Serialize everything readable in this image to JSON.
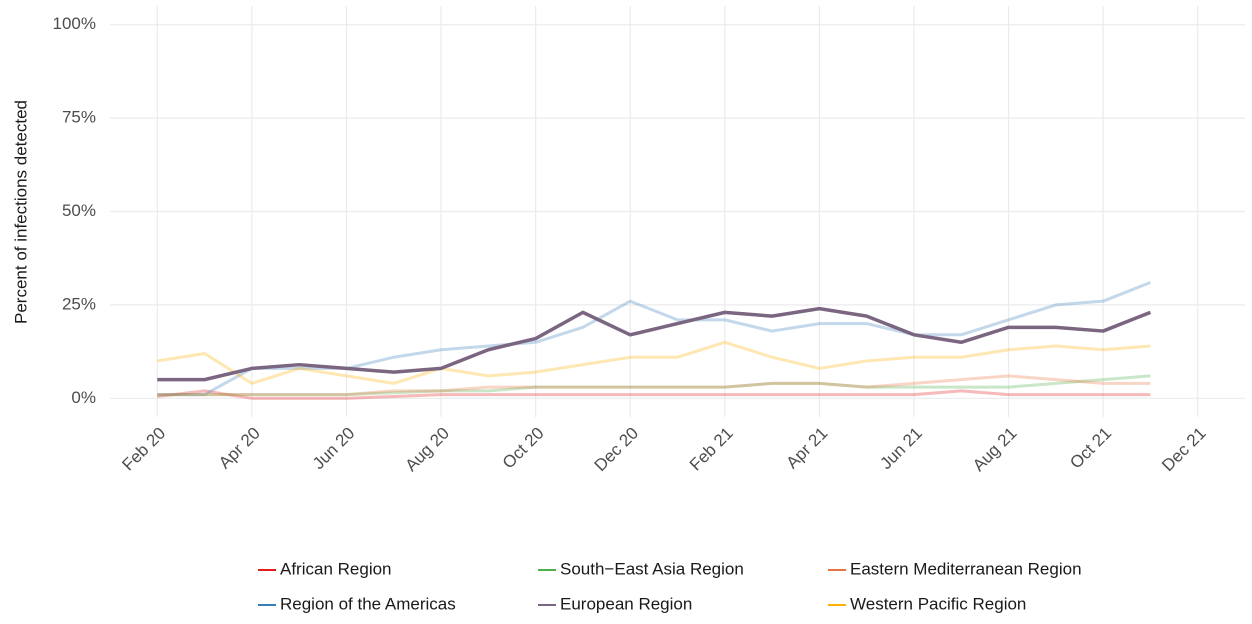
{
  "chart_data": {
    "type": "line",
    "y_label": "Percent of infections detected",
    "x": [
      "2020-02",
      "2020-03",
      "2020-04",
      "2020-05",
      "2020-06",
      "2020-07",
      "2020-08",
      "2020-09",
      "2020-10",
      "2020-11",
      "2020-12",
      "2021-01",
      "2021-02",
      "2021-03",
      "2021-04",
      "2021-05",
      "2021-06",
      "2021-07",
      "2021-08",
      "2021-09",
      "2021-10",
      "2021-11"
    ],
    "series": [
      {
        "name": "African Region",
        "color": "#e41a1c",
        "alpha": 0.3,
        "values": [
          0.5,
          2,
          0,
          0,
          0,
          0.5,
          1,
          1,
          1,
          1,
          1,
          1,
          1,
          1,
          1,
          1,
          1,
          2,
          1,
          1,
          1,
          1
        ]
      },
      {
        "name": "Region of the Americas",
        "color": "#377eb8",
        "alpha": 0.3,
        "values": [
          1,
          1,
          8,
          8,
          8,
          11,
          13,
          14,
          15,
          19,
          26,
          21,
          21,
          18,
          20,
          20,
          17,
          17,
          21,
          25,
          26,
          31
        ]
      },
      {
        "name": "South−East Asia Region",
        "color": "#4daf4a",
        "alpha": 0.3,
        "values": [
          1,
          1,
          1,
          1,
          1,
          1.5,
          2,
          2,
          3,
          3,
          3,
          3,
          3,
          4,
          4,
          3,
          3,
          3,
          3,
          4,
          5,
          6
        ]
      },
      {
        "name": "European Region",
        "color": "#7a6680",
        "alpha": 1,
        "values": [
          5,
          5,
          8,
          9,
          8,
          7,
          8,
          13,
          16,
          23,
          17,
          20,
          23,
          22,
          24,
          22,
          17,
          15,
          19,
          19,
          18,
          23
        ]
      },
      {
        "name": "Eastern Mediterranean Region",
        "color": "#e7743f",
        "alpha": 0.3,
        "values": [
          1,
          1,
          1,
          1,
          1,
          2,
          2,
          3,
          3,
          3,
          3,
          3,
          3,
          4,
          4,
          3,
          4,
          5,
          6,
          5,
          4,
          4
        ]
      },
      {
        "name": "Western Pacific Region",
        "color": "#ffb000",
        "alpha": 0.3,
        "values": [
          10,
          12,
          4,
          8,
          6,
          4,
          8,
          6,
          7,
          9,
          11,
          11,
          15,
          11,
          8,
          10,
          11,
          11,
          13,
          14,
          13,
          14
        ]
      }
    ],
    "xlim": [
      "2020-01",
      "2022-01"
    ],
    "xticks": [
      {
        "value": "2020-02",
        "label": "Feb 20"
      },
      {
        "value": "2020-04",
        "label": "Apr 20"
      },
      {
        "value": "2020-06",
        "label": "Jun 20"
      },
      {
        "value": "2020-08",
        "label": "Aug 20"
      },
      {
        "value": "2020-10",
        "label": "Oct 20"
      },
      {
        "value": "2020-12",
        "label": "Dec 20"
      },
      {
        "value": "2021-02",
        "label": "Feb 21"
      },
      {
        "value": "2021-04",
        "label": "Apr 21"
      },
      {
        "value": "2021-06",
        "label": "Jun 21"
      },
      {
        "value": "2021-08",
        "label": "Aug 21"
      },
      {
        "value": "2021-10",
        "label": "Oct 21"
      },
      {
        "value": "2021-12",
        "label": "Dec 21"
      }
    ],
    "ylim": [
      -5,
      105
    ],
    "yticks": [
      {
        "value": 0,
        "label": "0%"
      },
      {
        "value": 25,
        "label": "25%"
      },
      {
        "value": 50,
        "label": "50%"
      },
      {
        "value": 75,
        "label": "75%"
      },
      {
        "value": 100,
        "label": "100%"
      }
    ],
    "grid": true,
    "legend": "bottom"
  }
}
